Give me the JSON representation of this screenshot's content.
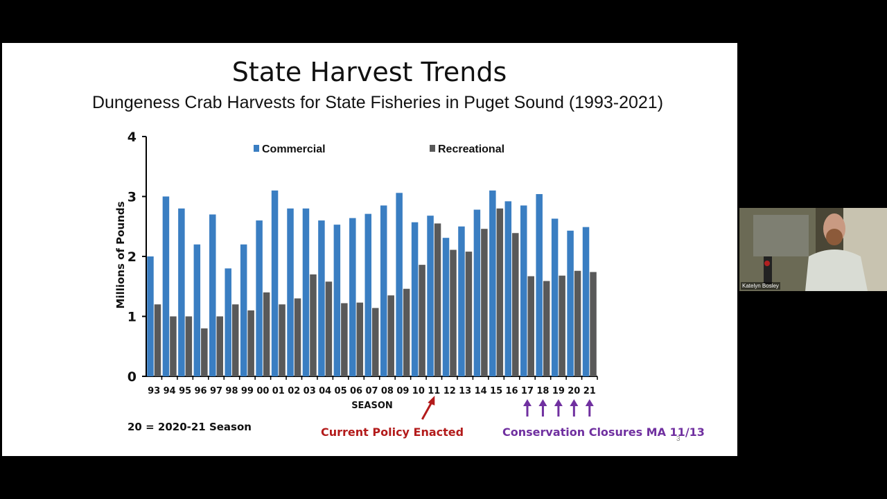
{
  "slide": {
    "title": "State Harvest Trends",
    "subtitle": "Dungeness Crab Harvests for State Fisheries in Puget Sound (1993-2021)",
    "season_note": "20 = 2020-21 Season",
    "policy_label": "Current Policy Enacted",
    "closure_label": "Conservation Closures MA 11/13",
    "page_number": "3",
    "colors": {
      "commercial": "#3a7ec2",
      "recreational": "#595959",
      "policy": "#b31b1b",
      "closure": "#7030a0"
    }
  },
  "chart_data": {
    "type": "bar",
    "xlabel": "SEASON",
    "ylabel": "Millions of Pounds",
    "ylim": [
      0,
      4
    ],
    "yticks": [
      "0",
      "1",
      "2",
      "3",
      "4"
    ],
    "legend_placement": "top",
    "grid": false,
    "categories": [
      "93",
      "94",
      "95",
      "96",
      "97",
      "98",
      "99",
      "00",
      "01",
      "02",
      "03",
      "04",
      "05",
      "06",
      "07",
      "08",
      "09",
      "10",
      "11",
      "12",
      "13",
      "14",
      "15",
      "16",
      "17",
      "18",
      "19",
      "20",
      "21"
    ],
    "series": [
      {
        "name": "Commercial",
        "color": "#3a7ec2",
        "values": [
          2.0,
          3.0,
          2.8,
          2.2,
          2.7,
          1.8,
          2.2,
          2.6,
          3.1,
          2.8,
          2.8,
          2.6,
          2.53,
          2.64,
          2.71,
          2.85,
          3.06,
          2.57,
          2.68,
          2.31,
          2.5,
          2.78,
          3.1,
          2.92,
          2.85,
          3.04,
          2.63,
          2.43,
          2.49
        ]
      },
      {
        "name": "Recreational",
        "color": "#595959",
        "values": [
          1.2,
          1.0,
          1.0,
          0.8,
          1.0,
          1.2,
          1.1,
          1.4,
          1.2,
          1.3,
          1.7,
          1.58,
          1.22,
          1.23,
          1.14,
          1.35,
          1.46,
          1.86,
          2.55,
          2.11,
          2.08,
          2.46,
          2.8,
          2.39,
          1.67,
          1.59,
          1.68,
          1.76,
          1.74
        ]
      }
    ],
    "annotations": {
      "policy_arrow_at": "11",
      "closure_arrows_at": [
        "17",
        "18",
        "19",
        "20",
        "21"
      ]
    }
  },
  "webcam": {
    "participant_name": "Katelyn Bosley"
  }
}
